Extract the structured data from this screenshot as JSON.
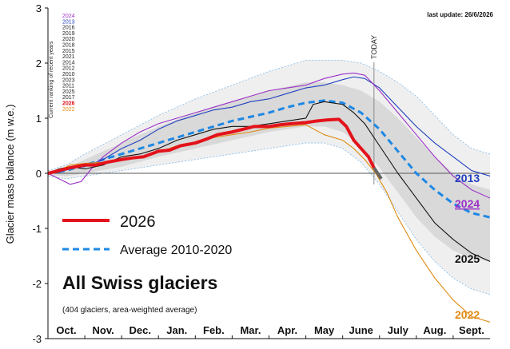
{
  "header": {
    "last_update": "last update: 26/6/2026",
    "today_label": "TODAY"
  },
  "ranking": {
    "title": "Current ranking of recent years",
    "items": [
      {
        "year": "2024",
        "color": "#9b30c8"
      },
      {
        "year": "2013",
        "color": "#1f3fbf"
      },
      {
        "year": "2016",
        "color": "#222222"
      },
      {
        "year": "2019",
        "color": "#222222"
      },
      {
        "year": "2020",
        "color": "#222222"
      },
      {
        "year": "2018",
        "color": "#222222"
      },
      {
        "year": "2015",
        "color": "#222222"
      },
      {
        "year": "2021",
        "color": "#222222"
      },
      {
        "year": "2014",
        "color": "#222222"
      },
      {
        "year": "2012",
        "color": "#222222"
      },
      {
        "year": "2010",
        "color": "#222222"
      },
      {
        "year": "2023",
        "color": "#222222"
      },
      {
        "year": "2011",
        "color": "#222222"
      },
      {
        "year": "2025",
        "color": "#222222"
      },
      {
        "year": "2017",
        "color": "#222222"
      },
      {
        "year": "2026",
        "color": "#e3121b"
      },
      {
        "year": "2022",
        "color": "#e08a12"
      }
    ]
  },
  "legend": {
    "current": "2026",
    "average": "Average 2010-2020"
  },
  "overlay": {
    "title": "All Swiss glaciers",
    "subtitle": "(404 glaciers, area-weighted average)"
  },
  "end_labels": {
    "y2013": "2013",
    "y2024": "2024",
    "y2025": "2025",
    "y2022": "2022"
  },
  "chart_data": {
    "type": "line",
    "ylabel": "Glacier mass balance (m w.e.)",
    "ylim": [
      -3,
      3
    ],
    "yticks": [
      "3",
      "2",
      "1",
      "0",
      "-1",
      "-2",
      "-3"
    ],
    "xlim": [
      0,
      12
    ],
    "month_labels": [
      "Oct.",
      "Nov.",
      "Dec.",
      "Jan.",
      "Feb.",
      "Mar.",
      "Apr.",
      "May",
      "June",
      "July",
      "Aug.",
      "Sept."
    ],
    "today": 8.85,
    "colors": {
      "current": "#e3121b",
      "average": "#1e88e5",
      "y2013": "#1f3fbf",
      "y2024": "#9b30c8",
      "y2025": "#111111",
      "y2022": "#e08a12",
      "other": "#444444"
    },
    "band_outer": {
      "x": [
        0,
        0.5,
        1,
        2,
        3,
        4,
        5,
        6,
        7,
        7.5,
        8,
        8.5,
        9,
        9.5,
        10,
        10.5,
        11,
        11.5,
        12
      ],
      "upper": [
        0.05,
        0.15,
        0.35,
        0.7,
        1.05,
        1.35,
        1.6,
        1.85,
        2.05,
        2.05,
        2.05,
        2.0,
        1.85,
        1.65,
        1.4,
        1.05,
        0.7,
        0.45,
        0.35
      ],
      "lower": [
        -0.05,
        -0.1,
        -0.05,
        0.05,
        0.15,
        0.25,
        0.35,
        0.45,
        0.55,
        0.55,
        0.45,
        0.2,
        -0.2,
        -0.7,
        -1.2,
        -1.6,
        -1.9,
        -2.1,
        -2.2
      ]
    },
    "band_inner": {
      "x": [
        0,
        0.5,
        1,
        2,
        3,
        4,
        5,
        6,
        7,
        7.5,
        8,
        8.5,
        9,
        9.5,
        10,
        10.5,
        11,
        11.5,
        12
      ],
      "upper": [
        0.03,
        0.1,
        0.25,
        0.55,
        0.85,
        1.1,
        1.3,
        1.5,
        1.65,
        1.65,
        1.6,
        1.5,
        1.3,
        1.0,
        0.65,
        0.3,
        0.0,
        -0.2,
        -0.3
      ],
      "lower": [
        -0.03,
        -0.05,
        0.0,
        0.12,
        0.3,
        0.45,
        0.6,
        0.75,
        0.85,
        0.85,
        0.75,
        0.5,
        0.1,
        -0.35,
        -0.8,
        -1.15,
        -1.4,
        -1.55,
        -1.6
      ]
    },
    "series": [
      {
        "name": "Average 2010-2020",
        "key": "average",
        "dashed": true,
        "x": [
          0,
          0.5,
          1,
          2,
          3,
          4,
          5,
          6,
          6.5,
          7,
          7.5,
          8,
          8.5,
          9,
          9.5,
          10,
          10.5,
          11,
          11.5,
          12
        ],
        "y": [
          0,
          0.05,
          0.15,
          0.35,
          0.55,
          0.75,
          0.95,
          1.1,
          1.2,
          1.28,
          1.32,
          1.28,
          1.1,
          0.8,
          0.4,
          0.0,
          -0.3,
          -0.55,
          -0.72,
          -0.8
        ]
      },
      {
        "name": "2013",
        "key": "y2013",
        "x": [
          0,
          0.3,
          0.7,
          1,
          1.5,
          2,
          2.5,
          3,
          3.5,
          4,
          4.5,
          5,
          5.5,
          6,
          6.5,
          7,
          7.5,
          8,
          8.3,
          8.6,
          9,
          9.5,
          10,
          10.5,
          11,
          11.5,
          12
        ],
        "y": [
          0,
          0.02,
          0.1,
          0.12,
          0.25,
          0.45,
          0.6,
          0.8,
          0.95,
          1.05,
          1.15,
          1.2,
          1.3,
          1.35,
          1.45,
          1.55,
          1.6,
          1.7,
          1.75,
          1.72,
          1.55,
          1.2,
          0.85,
          0.55,
          0.3,
          0.05,
          -0.05
        ]
      },
      {
        "name": "2024",
        "key": "y2024",
        "x": [
          0,
          0.3,
          0.6,
          0.9,
          1.2,
          1.5,
          2,
          2.5,
          3,
          3.5,
          4,
          4.5,
          5,
          5.5,
          6,
          6.5,
          7,
          7.5,
          8,
          8.3,
          8.6,
          9,
          9.5,
          10,
          10.5,
          11,
          11.5,
          12
        ],
        "y": [
          0,
          -0.1,
          -0.2,
          -0.15,
          0.1,
          0.3,
          0.55,
          0.75,
          0.9,
          1.0,
          1.1,
          1.2,
          1.3,
          1.4,
          1.5,
          1.55,
          1.6,
          1.72,
          1.8,
          1.82,
          1.78,
          1.5,
          1.1,
          0.7,
          0.3,
          -0.05,
          -0.3,
          -0.45
        ]
      },
      {
        "name": "2025",
        "key": "y2025",
        "x": [
          0,
          0.3,
          0.6,
          1,
          1.5,
          2,
          2.5,
          3,
          3.5,
          4,
          4.5,
          5,
          5.5,
          6,
          6.5,
          7,
          7.2,
          7.5,
          8,
          8.3,
          8.6,
          9,
          9.5,
          10,
          10.5,
          11,
          11.5,
          12
        ],
        "y": [
          0,
          0.08,
          0.12,
          0.08,
          0.15,
          0.3,
          0.35,
          0.45,
          0.6,
          0.7,
          0.8,
          0.85,
          0.85,
          0.9,
          0.95,
          1.0,
          1.25,
          1.3,
          1.25,
          1.1,
          0.9,
          0.5,
          0.0,
          -0.45,
          -0.9,
          -1.2,
          -1.45,
          -1.6
        ]
      },
      {
        "name": "2022",
        "key": "y2022",
        "x": [
          0,
          0.3,
          0.6,
          1,
          1.5,
          2,
          2.5,
          3,
          3.5,
          4,
          4.5,
          5,
          5.5,
          6,
          6.5,
          7,
          7.5,
          8,
          8.3,
          8.6,
          8.9,
          9.2,
          9.5,
          10,
          10.5,
          11,
          11.5,
          12
        ],
        "y": [
          0,
          0.05,
          0.15,
          0.18,
          0.2,
          0.25,
          0.3,
          0.38,
          0.5,
          0.55,
          0.65,
          0.7,
          0.75,
          0.82,
          0.85,
          0.88,
          0.7,
          0.6,
          0.45,
          0.25,
          0.0,
          -0.35,
          -0.8,
          -1.4,
          -1.9,
          -2.3,
          -2.6,
          -2.7
        ]
      },
      {
        "name": "2026",
        "key": "current",
        "thick": true,
        "x": [
          0,
          0.3,
          0.6,
          1,
          1.3,
          1.6,
          2,
          2.3,
          2.6,
          3,
          3.3,
          3.6,
          4,
          4.3,
          4.6,
          5,
          5.3,
          5.6,
          6,
          6.3,
          6.6,
          7,
          7.3,
          7.6,
          7.9,
          8.1,
          8.3,
          8.5,
          8.7,
          8.85
        ],
        "y": [
          0,
          0.05,
          0.1,
          0.15,
          0.15,
          0.2,
          0.25,
          0.28,
          0.3,
          0.4,
          0.42,
          0.5,
          0.55,
          0.62,
          0.7,
          0.75,
          0.8,
          0.85,
          0.85,
          0.88,
          0.9,
          0.92,
          0.95,
          0.97,
          0.98,
          0.85,
          0.6,
          0.45,
          0.3,
          0.1
        ]
      }
    ]
  }
}
